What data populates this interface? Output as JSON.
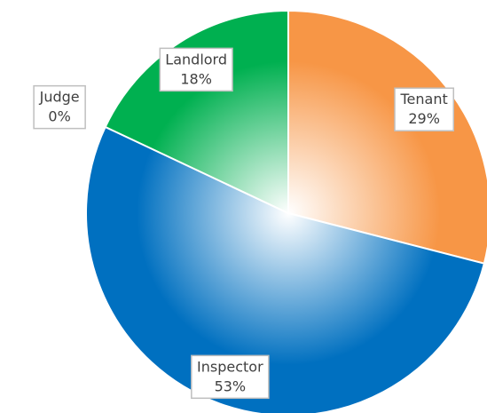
{
  "chart_data": {
    "type": "pie",
    "categories": [
      "Tenant",
      "Inspector",
      "Judge",
      "Landlord"
    ],
    "values": [
      29,
      53,
      0,
      18
    ],
    "value_labels": [
      "29%",
      "53%",
      "0%",
      "18%"
    ],
    "colors": [
      "#f79646",
      "#0070c0",
      null,
      "#00b050"
    ]
  }
}
